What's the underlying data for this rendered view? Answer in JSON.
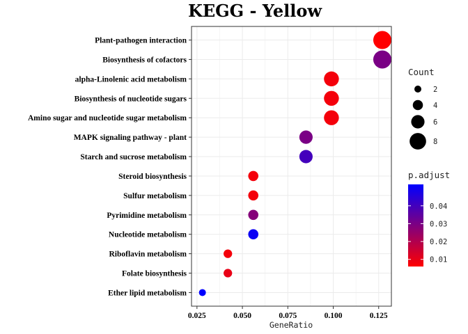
{
  "chart_data": {
    "type": "scatter",
    "title": "KEGG - Yellow",
    "xlabel": "GeneRatio",
    "ylabel": "",
    "xlim": [
      0.022,
      0.132
    ],
    "x_ticks": [
      0.025,
      0.05,
      0.075,
      0.1,
      0.125
    ],
    "x_tick_labels": [
      "0.025",
      "0.050",
      "0.075",
      "0.100",
      "0.125"
    ],
    "grid": true,
    "categories": [
      "Plant-pathogen interaction",
      "Biosynthesis of cofactors",
      "alpha-Linolenic acid metabolism",
      "Biosynthesis of nucleotide sugars",
      "Amino sugar and nucleotide sugar metabolism",
      "MAPK signaling pathway - plant",
      "Starch and sucrose metabolism",
      "Steroid biosynthesis",
      "Sulfur metabolism",
      "Pyrimidine metabolism",
      "Nucleotide metabolism",
      "Riboflavin metabolism",
      "Folate biosynthesis",
      "Ether lipid metabolism"
    ],
    "points": [
      {
        "term": "Plant-pathogen interaction",
        "gene_ratio": 0.127,
        "count": 9,
        "p_adjust": 0.006
      },
      {
        "term": "Biosynthesis of cofactors",
        "gene_ratio": 0.127,
        "count": 9,
        "p_adjust": 0.03
      },
      {
        "term": "alpha-Linolenic acid metabolism",
        "gene_ratio": 0.099,
        "count": 7,
        "p_adjust": 0.008
      },
      {
        "term": "Biosynthesis of nucleotide sugars",
        "gene_ratio": 0.099,
        "count": 7,
        "p_adjust": 0.008
      },
      {
        "term": "Amino sugar and nucleotide sugar metabolism",
        "gene_ratio": 0.099,
        "count": 7,
        "p_adjust": 0.008
      },
      {
        "term": "MAPK signaling pathway - plant",
        "gene_ratio": 0.085,
        "count": 6,
        "p_adjust": 0.03
      },
      {
        "term": "Starch and sucrose metabolism",
        "gene_ratio": 0.085,
        "count": 6,
        "p_adjust": 0.04
      },
      {
        "term": "Steroid biosynthesis",
        "gene_ratio": 0.056,
        "count": 4,
        "p_adjust": 0.008
      },
      {
        "term": "Sulfur metabolism",
        "gene_ratio": 0.056,
        "count": 4,
        "p_adjust": 0.008
      },
      {
        "term": "Pyrimidine metabolism",
        "gene_ratio": 0.056,
        "count": 4,
        "p_adjust": 0.028
      },
      {
        "term": "Nucleotide metabolism",
        "gene_ratio": 0.056,
        "count": 4,
        "p_adjust": 0.05
      },
      {
        "term": "Riboflavin metabolism",
        "gene_ratio": 0.042,
        "count": 3,
        "p_adjust": 0.008
      },
      {
        "term": "Folate biosynthesis",
        "gene_ratio": 0.042,
        "count": 3,
        "p_adjust": 0.01
      },
      {
        "term": "Ether lipid metabolism",
        "gene_ratio": 0.028,
        "count": 2,
        "p_adjust": 0.052
      }
    ],
    "legend_size": {
      "title": "Count",
      "values": [
        2,
        4,
        6,
        8
      ],
      "labels": [
        "2",
        "4",
        "6",
        "8"
      ],
      "placement": "right"
    },
    "legend_color": {
      "title": "p.adjust",
      "range": [
        0.006,
        0.052
      ],
      "ticks": [
        0.01,
        0.02,
        0.03,
        0.04
      ],
      "tick_labels": [
        "0.01",
        "0.02",
        "0.03",
        "0.04"
      ],
      "low_color": "#ff0000",
      "high_color": "#0000ff",
      "placement": "right"
    },
    "count_range": [
      2,
      9
    ],
    "colors": {
      "panel_border": "#333333",
      "grid": "#ebebeb",
      "point_stroke": "none"
    }
  }
}
